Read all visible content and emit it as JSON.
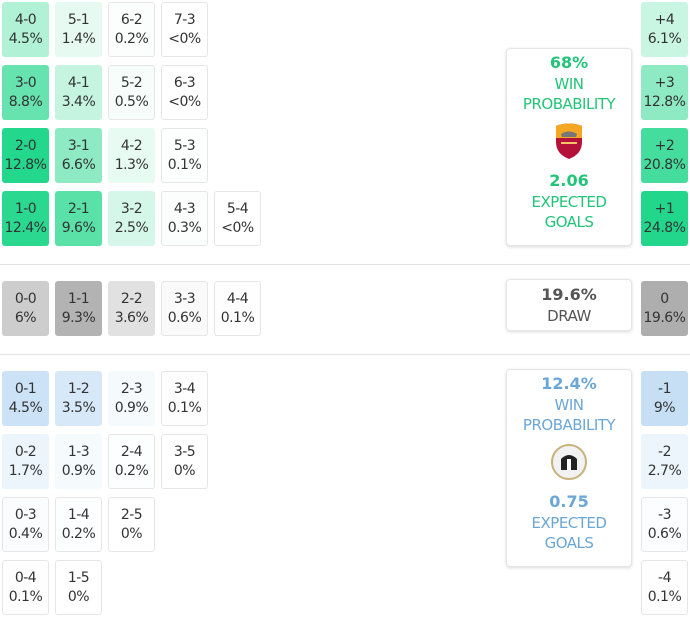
{
  "colors": {
    "home": "#1fd68a",
    "home_text": "#22c577",
    "away": "#8cc0ea",
    "away_text": "#6aa6d6",
    "draw": "#9e9e9e",
    "draw_text": "#555555"
  },
  "home_grid": [
    [
      {
        "score": "4-0",
        "pct": "4.5%"
      },
      {
        "score": "5-1",
        "pct": "1.4%"
      },
      {
        "score": "6-2",
        "pct": "0.2%"
      },
      {
        "score": "7-3",
        "pct": "<0%"
      }
    ],
    [
      {
        "score": "3-0",
        "pct": "8.8%"
      },
      {
        "score": "4-1",
        "pct": "3.4%"
      },
      {
        "score": "5-2",
        "pct": "0.5%"
      },
      {
        "score": "6-3",
        "pct": "<0%"
      }
    ],
    [
      {
        "score": "2-0",
        "pct": "12.8%"
      },
      {
        "score": "3-1",
        "pct": "6.6%"
      },
      {
        "score": "4-2",
        "pct": "1.3%"
      },
      {
        "score": "5-3",
        "pct": "0.1%"
      }
    ],
    [
      {
        "score": "1-0",
        "pct": "12.4%"
      },
      {
        "score": "2-1",
        "pct": "9.6%"
      },
      {
        "score": "3-2",
        "pct": "2.5%"
      },
      {
        "score": "4-3",
        "pct": "0.3%"
      },
      {
        "score": "5-4",
        "pct": "<0%"
      }
    ]
  ],
  "draw_grid": [
    [
      {
        "score": "0-0",
        "pct": "6%"
      },
      {
        "score": "1-1",
        "pct": "9.3%"
      },
      {
        "score": "2-2",
        "pct": "3.6%"
      },
      {
        "score": "3-3",
        "pct": "0.6%"
      },
      {
        "score": "4-4",
        "pct": "0.1%"
      }
    ]
  ],
  "away_grid": [
    [
      {
        "score": "0-1",
        "pct": "4.5%"
      },
      {
        "score": "1-2",
        "pct": "3.5%"
      },
      {
        "score": "2-3",
        "pct": "0.9%"
      },
      {
        "score": "3-4",
        "pct": "0.1%"
      }
    ],
    [
      {
        "score": "0-2",
        "pct": "1.7%"
      },
      {
        "score": "1-3",
        "pct": "0.9%"
      },
      {
        "score": "2-4",
        "pct": "0.2%"
      },
      {
        "score": "3-5",
        "pct": "0%"
      }
    ],
    [
      {
        "score": "0-3",
        "pct": "0.4%"
      },
      {
        "score": "1-4",
        "pct": "0.2%"
      },
      {
        "score": "2-5",
        "pct": "0%"
      }
    ],
    [
      {
        "score": "0-4",
        "pct": "0.1%"
      },
      {
        "score": "1-5",
        "pct": "0%"
      }
    ]
  ],
  "margins": {
    "home": [
      {
        "score": "+4",
        "pct": "6.1%"
      },
      {
        "score": "+3",
        "pct": "12.8%"
      },
      {
        "score": "+2",
        "pct": "20.8%"
      },
      {
        "score": "+1",
        "pct": "24.8%"
      }
    ],
    "draw": [
      {
        "score": "0",
        "pct": "19.6%"
      }
    ],
    "away": [
      {
        "score": "-1",
        "pct": "9%"
      },
      {
        "score": "-2",
        "pct": "2.7%"
      },
      {
        "score": "-3",
        "pct": "0.6%"
      },
      {
        "score": "-4",
        "pct": "0.1%"
      }
    ]
  },
  "home_card": {
    "win_pct": "68%",
    "win_label_1": "WIN",
    "win_label_2": "PROBABILITY",
    "team_logo": "roma-crest",
    "xg": "2.06",
    "xg_label_1": "EXPECTED",
    "xg_label_2": "GOALS"
  },
  "draw_card": {
    "pct": "19.6%",
    "label": "DRAW"
  },
  "away_card": {
    "win_pct": "12.4%",
    "win_label_1": "WIN",
    "win_label_2": "PROBABILITY",
    "team_logo": "udinese-crest",
    "xg": "0.75",
    "xg_label_1": "EXPECTED",
    "xg_label_2": "GOALS"
  }
}
